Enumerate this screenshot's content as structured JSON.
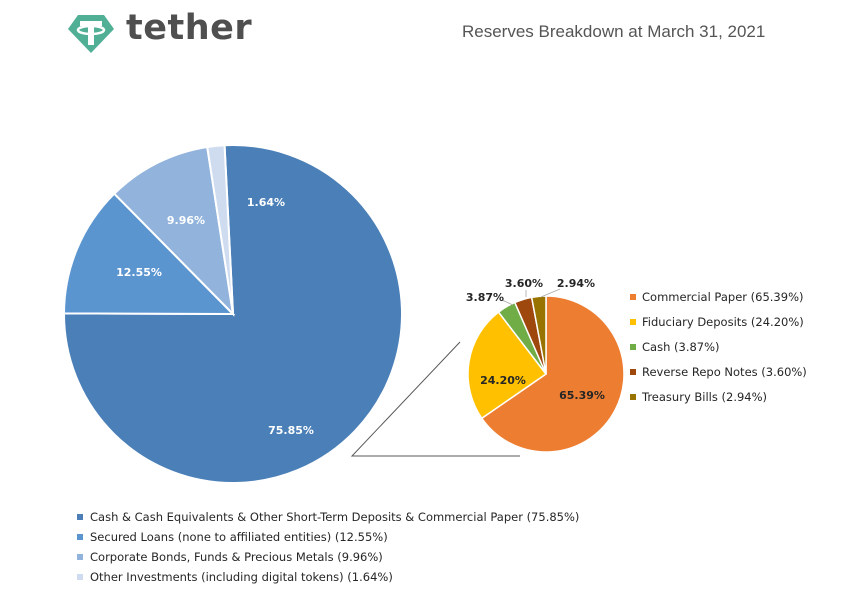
{
  "header": {
    "brand": "tether",
    "title": "Reserves Breakdown at March 31, 2021",
    "colors": {
      "brand_green": "#50af95"
    }
  },
  "chart_data": [
    {
      "type": "pie",
      "categories": [
        "Cash & Cash Equivalents & Other Short-Term Deposits & Commercial Paper (75.85%)",
        "Secured Loans (none to affiliated entities) (12.55%)",
        "Corporate Bonds, Funds & Precious Metals (9.96%)",
        "Other Investments (including digital tokens) (1.64%)"
      ],
      "values": [
        75.85,
        12.55,
        9.96,
        1.64
      ],
      "data_labels": [
        "75.85%",
        "12.55%",
        "9.96%",
        "1.64%"
      ],
      "colors": [
        "#4a7fb7",
        "#5b95d0",
        "#91b3dc",
        "#cfdcef"
      ],
      "legend": "bottom-left"
    },
    {
      "type": "pie",
      "categories": [
        "Commercial Paper (65.39%)",
        "Fiduciary Deposits (24.20%)",
        "Cash (3.87%)",
        "Reverse Repo Notes (3.60%)",
        "Treasury Bills (2.94%)"
      ],
      "values": [
        65.39,
        24.2,
        3.87,
        3.6,
        2.94
      ],
      "data_labels": [
        "65.39%",
        "24.20%",
        "3.87%",
        "3.60%",
        "2.94%"
      ],
      "colors": [
        "#ed7d31",
        "#ffc000",
        "#70ad47",
        "#9e480e",
        "#997300"
      ],
      "legend": "right"
    }
  ]
}
